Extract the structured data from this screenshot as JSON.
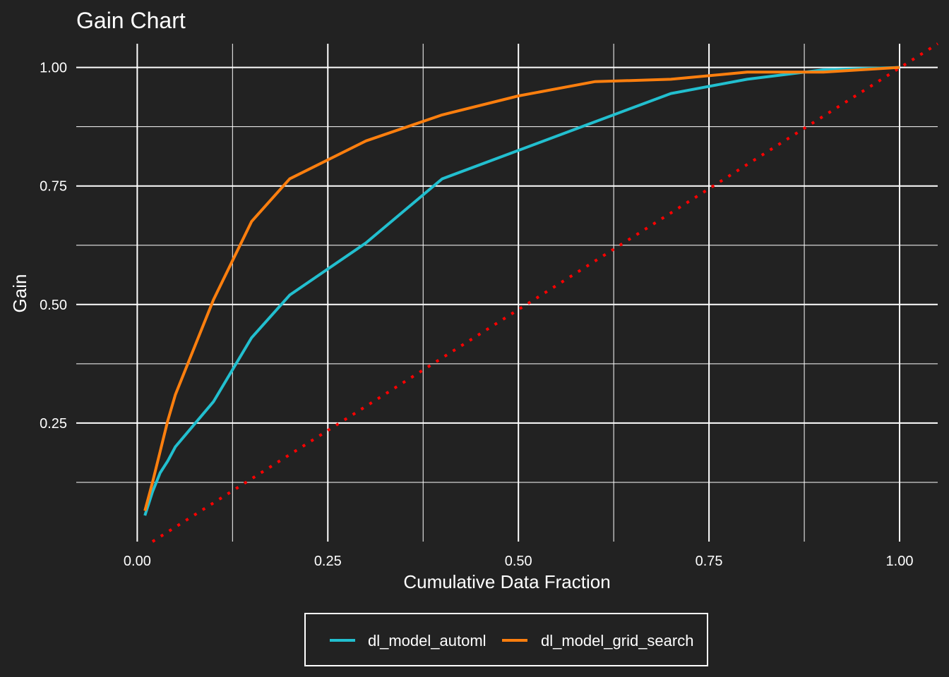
{
  "chart_data": {
    "type": "line",
    "title": "Gain Chart",
    "xlabel": "Cumulative Data Fraction",
    "ylabel": "Gain",
    "xlim": [
      -0.08,
      1.05
    ],
    "ylim": [
      0.0,
      1.05
    ],
    "x_ticks": [
      0.0,
      0.25,
      0.5,
      0.75,
      1.0
    ],
    "x_tick_labels": [
      "0.00",
      "0.25",
      "0.50",
      "0.75",
      "1.00"
    ],
    "y_ticks": [
      0.25,
      0.5,
      0.75,
      1.0
    ],
    "y_tick_labels": [
      "0.25",
      "0.50",
      "0.75",
      "1.00"
    ],
    "grid": true,
    "legend_position": "bottom",
    "series": [
      {
        "name": "dl_model_automl",
        "color": "#22BFCF",
        "x": [
          0.01,
          0.02,
          0.03,
          0.04,
          0.05,
          0.1,
          0.15,
          0.2,
          0.3,
          0.4,
          0.5,
          0.6,
          0.7,
          0.8,
          0.9,
          1.0
        ],
        "y": [
          0.055,
          0.105,
          0.145,
          0.17,
          0.2,
          0.295,
          0.43,
          0.52,
          0.63,
          0.765,
          0.825,
          0.885,
          0.945,
          0.975,
          0.995,
          1.0
        ]
      },
      {
        "name": "dl_model_grid_search",
        "color": "#FF7F0E",
        "x": [
          0.01,
          0.02,
          0.03,
          0.04,
          0.05,
          0.1,
          0.15,
          0.2,
          0.3,
          0.4,
          0.5,
          0.6,
          0.7,
          0.8,
          0.9,
          1.0
        ],
        "y": [
          0.065,
          0.125,
          0.19,
          0.255,
          0.31,
          0.51,
          0.675,
          0.765,
          0.845,
          0.9,
          0.94,
          0.97,
          0.975,
          0.99,
          0.99,
          1.0
        ]
      }
    ],
    "reference_line": {
      "color": "#FF0000",
      "x": [
        0.02,
        1.05
      ],
      "y": [
        0.0,
        1.05
      ]
    }
  }
}
